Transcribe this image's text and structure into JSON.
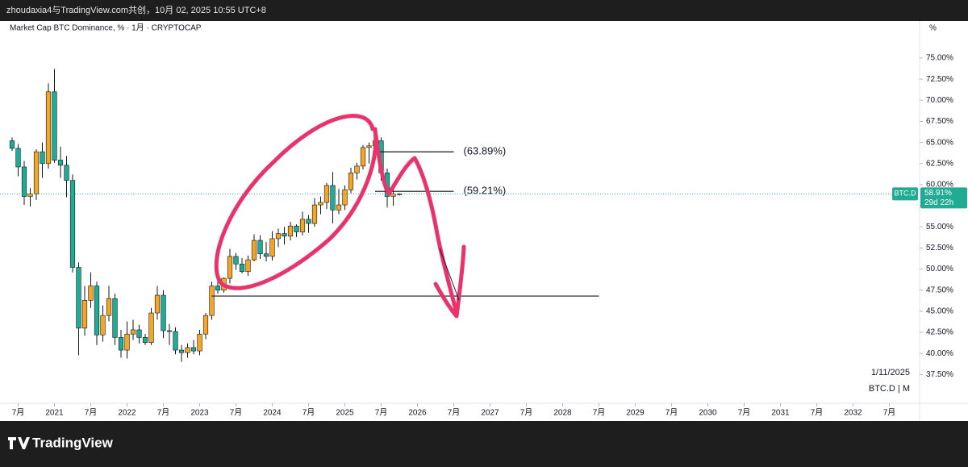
{
  "header": {
    "text": "zhoudaxia4与TradingView.com共创，10月 02, 2025 10:55 UTC+8"
  },
  "footer": {
    "brand": "TradingView"
  },
  "chart_data": {
    "type": "candlestick",
    "title": "Market Cap BTC Dominance, % · 1月 · CRYPTOCAP",
    "y_unit": "%",
    "symbol": "BTC.D",
    "interval_label": "BTC.D | M",
    "date_label": "1/11/2025",
    "countdown": "29d 22h",
    "last_price": {
      "value": 58.91,
      "label": "58.91%"
    },
    "up_color": "#f5a623",
    "down_color": "#22ab94",
    "grid": false,
    "x": [
      "2020-06",
      "2020-07",
      "2020-08",
      "2020-09",
      "2020-10",
      "2020-11",
      "2020-12",
      "2021-01",
      "2021-02",
      "2021-03",
      "2021-04",
      "2021-05",
      "2021-06",
      "2021-07",
      "2021-08",
      "2021-09",
      "2021-10",
      "2021-11",
      "2021-12",
      "2022-01",
      "2022-02",
      "2022-03",
      "2022-04",
      "2022-05",
      "2022-06",
      "2022-07",
      "2022-08",
      "2022-09",
      "2022-10",
      "2022-11",
      "2022-12",
      "2023-01",
      "2023-02",
      "2023-03",
      "2023-04",
      "2023-05",
      "2023-06",
      "2023-07",
      "2023-08",
      "2023-09",
      "2023-10",
      "2023-11",
      "2023-12",
      "2024-01",
      "2024-02",
      "2024-03",
      "2024-04",
      "2024-05",
      "2024-06",
      "2024-07",
      "2024-08",
      "2024-09",
      "2024-10",
      "2024-11",
      "2024-12",
      "2025-01",
      "2025-02",
      "2025-03",
      "2025-04",
      "2025-05",
      "2025-06",
      "2025-07",
      "2025-08",
      "2025-09",
      "2025-10"
    ],
    "open": [
      65.2,
      64.3,
      62.1,
      58.6,
      58.9,
      63.9,
      62.5,
      71.0,
      62.9,
      62.3,
      60.5,
      50.2,
      43.0,
      46.3,
      48.0,
      42.2,
      44.5,
      46.5,
      41.9,
      40.4,
      42.3,
      42.8,
      41.9,
      41.3,
      44.8,
      46.9,
      42.7,
      42.6,
      40.4,
      40.1,
      40.7,
      40.3,
      42.3,
      44.5,
      48.0,
      47.5,
      48.9,
      51.5,
      50.6,
      49.7,
      51.1,
      53.4,
      51.8,
      51.5,
      53.6,
      54.2,
      53.9,
      55.1,
      54.4,
      55.9,
      55.4,
      57.6,
      57.9,
      59.9,
      57.0,
      57.6,
      59.4,
      61.4,
      62.2,
      64.4,
      64.6,
      65.2,
      61.4,
      58.6,
      58.9
    ],
    "high": [
      65.6,
      64.8,
      62.8,
      59.6,
      64.2,
      65.0,
      72.0,
      73.7,
      64.5,
      63.4,
      61.2,
      50.8,
      48.0,
      49.6,
      48.5,
      45.7,
      48.0,
      47.1,
      42.8,
      43.8,
      44.0,
      43.4,
      42.3,
      45.4,
      48.0,
      47.5,
      43.5,
      43.1,
      41.0,
      41.2,
      41.6,
      42.8,
      44.8,
      48.5,
      48.6,
      49.0,
      52.4,
      51.9,
      51.3,
      51.6,
      54.1,
      54.0,
      53.2,
      54.5,
      54.8,
      55.0,
      55.6,
      55.3,
      56.8,
      56.4,
      58.4,
      58.6,
      60.2,
      61.5,
      59.5,
      59.9,
      62.0,
      62.6,
      64.7,
      65.0,
      66.0,
      65.6,
      61.9,
      59.6,
      59.0
    ],
    "low": [
      64.0,
      61.0,
      57.6,
      57.4,
      58.2,
      60.8,
      61.9,
      62.6,
      60.8,
      58.5,
      49.6,
      39.8,
      42.1,
      45.4,
      41.0,
      41.4,
      43.8,
      41.0,
      39.5,
      39.4,
      41.6,
      41.2,
      41.0,
      41.0,
      44.0,
      41.8,
      41.0,
      39.9,
      39.0,
      39.5,
      39.9,
      39.8,
      41.7,
      44.0,
      47.1,
      47.2,
      48.3,
      49.9,
      49.5,
      49.2,
      50.9,
      51.2,
      50.9,
      51.0,
      52.6,
      52.9,
      53.4,
      53.8,
      54.0,
      54.3,
      55.0,
      56.5,
      57.1,
      55.4,
      56.5,
      57.0,
      59.0,
      60.6,
      61.8,
      62.5,
      63.8,
      60.5,
      57.3,
      57.5,
      58.7
    ],
    "close": [
      64.3,
      62.1,
      58.6,
      58.9,
      63.9,
      62.5,
      71.0,
      62.9,
      62.3,
      60.5,
      50.2,
      43.0,
      46.3,
      48.0,
      42.2,
      44.5,
      46.5,
      41.9,
      40.4,
      42.3,
      42.8,
      41.9,
      41.3,
      44.8,
      46.9,
      42.7,
      42.6,
      40.4,
      40.1,
      40.7,
      40.3,
      42.3,
      44.5,
      48.0,
      47.5,
      48.9,
      51.5,
      50.6,
      49.7,
      51.1,
      53.4,
      51.8,
      51.5,
      53.6,
      54.2,
      53.9,
      55.1,
      54.4,
      55.9,
      55.4,
      57.6,
      57.9,
      59.9,
      57.0,
      57.6,
      59.4,
      61.4,
      62.2,
      64.4,
      64.6,
      65.2,
      61.4,
      58.6,
      58.9,
      58.91
    ],
    "xlim": [
      "2020-04",
      "2032-12"
    ],
    "xticks": [
      {
        "value": "2020-07",
        "label": "7月"
      },
      {
        "value": "2021-01",
        "label": "2021"
      },
      {
        "value": "2021-07",
        "label": "7月"
      },
      {
        "value": "2022-01",
        "label": "2022"
      },
      {
        "value": "2022-07",
        "label": "7月"
      },
      {
        "value": "2023-01",
        "label": "2023"
      },
      {
        "value": "2023-07",
        "label": "7月"
      },
      {
        "value": "2024-01",
        "label": "2024"
      },
      {
        "value": "2024-07",
        "label": "7月"
      },
      {
        "value": "2025-01",
        "label": "2025"
      },
      {
        "value": "2025-07",
        "label": "7月"
      },
      {
        "value": "2026-01",
        "label": "2026"
      },
      {
        "value": "2026-07",
        "label": "7月"
      },
      {
        "value": "2027-01",
        "label": "2027"
      },
      {
        "value": "2027-07",
        "label": "7月"
      },
      {
        "value": "2028-01",
        "label": "2028"
      },
      {
        "value": "2028-07",
        "label": "7月"
      },
      {
        "value": "2029-01",
        "label": "2029"
      },
      {
        "value": "2029-07",
        "label": "7月"
      },
      {
        "value": "2030-01",
        "label": "2030"
      },
      {
        "value": "2030-07",
        "label": "7月"
      },
      {
        "value": "2031-01",
        "label": "2031"
      },
      {
        "value": "2031-07",
        "label": "7月"
      },
      {
        "value": "2032-01",
        "label": "2032"
      },
      {
        "value": "2032-07",
        "label": "7月"
      }
    ],
    "ylim": [
      34.1,
      79.2
    ],
    "yticks": [
      {
        "value": 37.5,
        "label": "37.50%"
      },
      {
        "value": 40,
        "label": "40.00%"
      },
      {
        "value": 42.5,
        "label": "42.50%"
      },
      {
        "value": 45,
        "label": "45.00%"
      },
      {
        "value": 47.5,
        "label": "47.50%"
      },
      {
        "value": 50,
        "label": "50.00%"
      },
      {
        "value": 52.5,
        "label": "52.50%"
      },
      {
        "value": 55,
        "label": "55.00%"
      },
      {
        "value": 57.5,
        "label": "57.50%"
      },
      {
        "value": 60,
        "label": "60.00%"
      },
      {
        "value": 62.5,
        "label": "62.50%"
      },
      {
        "value": 65,
        "label": "65.00%"
      },
      {
        "value": 67.5,
        "label": "67.50%"
      },
      {
        "value": 70,
        "label": "70.00%"
      },
      {
        "value": 72.5,
        "label": "72.50%"
      },
      {
        "value": 75,
        "label": "75.00%"
      }
    ],
    "levels": [
      {
        "value": 63.89,
        "label": "(63.89%)",
        "from": "2025-06",
        "to": "2026-07"
      },
      {
        "value": 59.21,
        "label": "(59.21%)",
        "from": "2025-06",
        "to": "2026-07"
      },
      {
        "value": 46.8,
        "from": "2023-03",
        "to": "2028-07"
      }
    ]
  }
}
